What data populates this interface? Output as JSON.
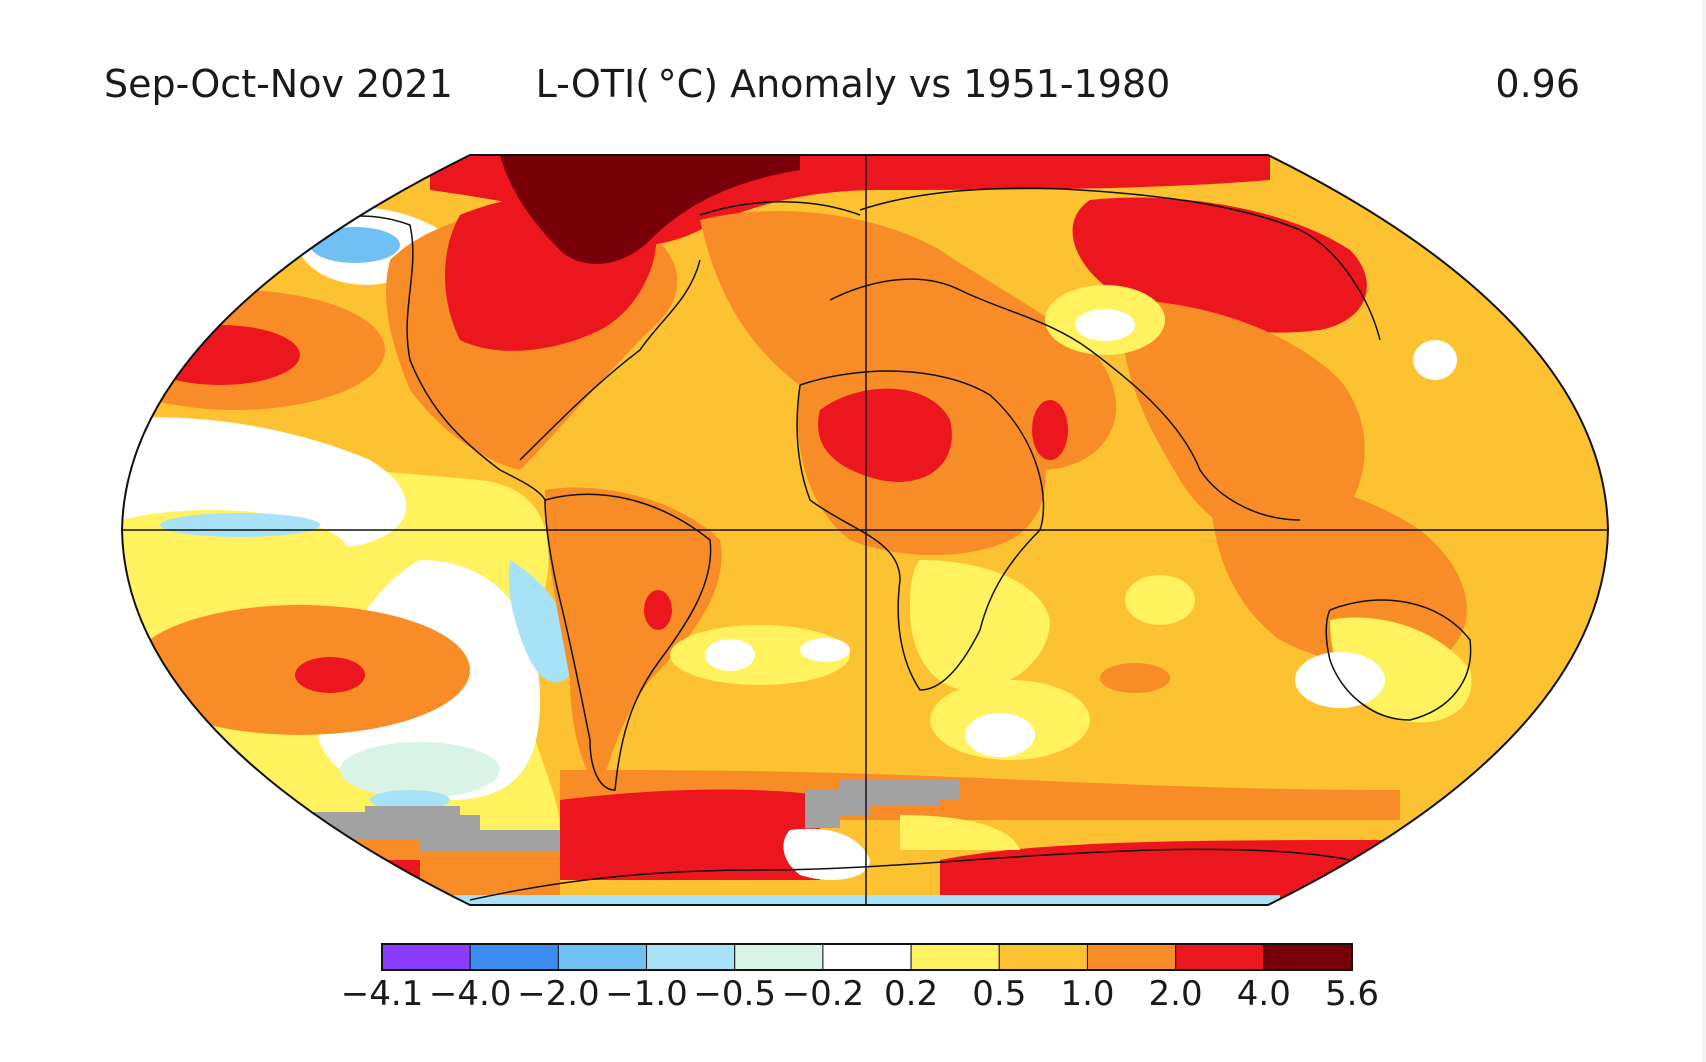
{
  "header": {
    "period": "Sep-Oct-Nov 2021",
    "title": "L-OTI( °C) Anomaly vs 1951-1980",
    "global_mean": "0.96"
  },
  "legend": {
    "ticks": [
      "−4.1",
      "−4.0",
      "−2.0",
      "−1.0",
      "−0.5",
      "−0.2",
      "0.2",
      "0.5",
      "1.0",
      "2.0",
      "4.0",
      "5.6"
    ],
    "bins": [
      {
        "range": "−4.1 to −4.0",
        "color": "#8c3cff"
      },
      {
        "range": "−4.0 to −2.0",
        "color": "#3c8cf2"
      },
      {
        "range": "−2.0 to −1.0",
        "color": "#70c0f4"
      },
      {
        "range": "−1.0 to −0.5",
        "color": "#a8e2f6"
      },
      {
        "range": "−0.5 to −0.2",
        "color": "#d9f4e6"
      },
      {
        "range": "−0.2 to 0.2",
        "color": "#ffffff"
      },
      {
        "range": "0.2 to 0.5",
        "color": "#fff25e"
      },
      {
        "range": "0.5 to 1.0",
        "color": "#fcc232"
      },
      {
        "range": "1.0 to 2.0",
        "color": "#f88c26"
      },
      {
        "range": "2.0 to 4.0",
        "color": "#ec161e"
      },
      {
        "range": "4.0 to 5.6",
        "color": "#780008"
      }
    ],
    "missing_color": "#a2a2a2"
  }
}
